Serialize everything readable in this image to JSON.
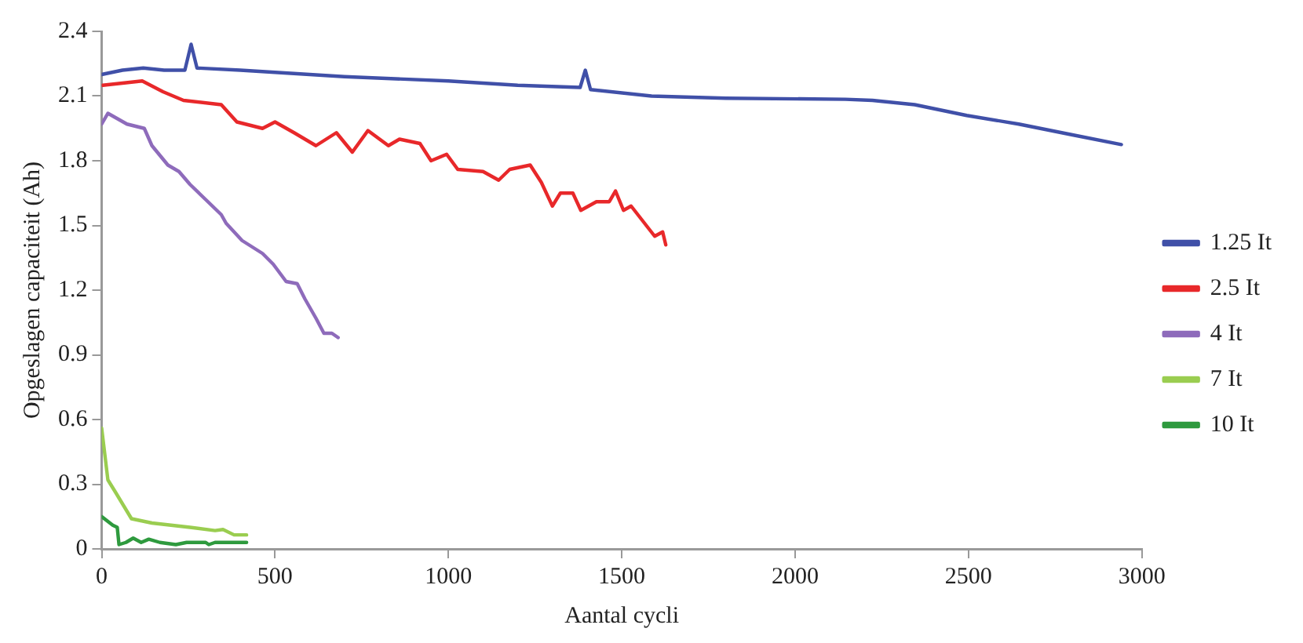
{
  "chart_data": {
    "type": "line",
    "xlabel": "Aantal cycli",
    "ylabel": "Opgeslagen capaciteit (Ah)",
    "xlim": [
      0,
      3000
    ],
    "xticks": [
      0,
      500,
      1000,
      1500,
      2000,
      2500,
      3000
    ],
    "ylim": [
      0,
      2.4
    ],
    "yticks": [
      0,
      0.3,
      0.6,
      0.9,
      1.2,
      1.5,
      1.8,
      2.1,
      2.4
    ],
    "grid": false,
    "legend": "right",
    "marker": "none",
    "line_style": "solid",
    "series": [
      {
        "name": "1.25 It",
        "color": "#4050a8",
        "x": [
          0,
          60,
          120,
          180,
          240,
          258,
          275,
          400,
          500,
          700,
          1000,
          1200,
          1380,
          1395,
          1410,
          1586,
          1800,
          2145,
          2223,
          2345,
          2495,
          2645,
          2800,
          2941
        ],
        "values": [
          2.2,
          2.22,
          2.23,
          2.22,
          2.22,
          2.34,
          2.23,
          2.22,
          2.21,
          2.19,
          2.17,
          2.15,
          2.14,
          2.22,
          2.13,
          2.1,
          2.09,
          2.085,
          2.08,
          2.06,
          2.01,
          1.97,
          1.92,
          1.875
        ]
      },
      {
        "name": "2.5 It",
        "color": "#e8282a",
        "x": [
          3,
          117,
          177,
          236,
          345,
          390,
          464,
          500,
          555,
          618,
          677,
          723,
          768,
          827,
          859,
          918,
          950,
          995,
          1027,
          1100,
          1145,
          1177,
          1236,
          1268,
          1300,
          1323,
          1359,
          1382,
          1427,
          1464,
          1482,
          1505,
          1527,
          1595,
          1618,
          1627
        ],
        "values": [
          2.15,
          2.17,
          2.12,
          2.08,
          2.06,
          1.98,
          1.95,
          1.98,
          1.93,
          1.87,
          1.93,
          1.84,
          1.94,
          1.87,
          1.9,
          1.88,
          1.8,
          1.83,
          1.76,
          1.75,
          1.71,
          1.76,
          1.78,
          1.7,
          1.59,
          1.65,
          1.65,
          1.57,
          1.61,
          1.61,
          1.66,
          1.57,
          1.59,
          1.45,
          1.47,
          1.41
        ]
      },
      {
        "name": "4 It",
        "color": "#8e6bbb",
        "x": [
          0,
          18,
          73,
          123,
          145,
          191,
          223,
          255,
          300,
          345,
          359,
          405,
          464,
          495,
          532,
          564,
          586,
          618,
          641,
          664,
          682
        ],
        "values": [
          1.97,
          2.02,
          1.97,
          1.95,
          1.87,
          1.78,
          1.75,
          1.69,
          1.62,
          1.55,
          1.51,
          1.43,
          1.37,
          1.32,
          1.24,
          1.23,
          1.16,
          1.07,
          1.0,
          1.0,
          0.98
        ]
      },
      {
        "name": "7 It",
        "color": "#9acd50",
        "x": [
          0,
          18,
          41,
          86,
          145,
          255,
          327,
          350,
          382,
          418
        ],
        "values": [
          0.56,
          0.32,
          0.26,
          0.14,
          0.12,
          0.1,
          0.085,
          0.09,
          0.065,
          0.065
        ]
      },
      {
        "name": "10 It",
        "color": "#2e9a3e",
        "x": [
          0,
          32,
          45,
          50,
          70,
          91,
          114,
          136,
          168,
          214,
          245,
          300,
          309,
          327,
          418
        ],
        "values": [
          0.15,
          0.11,
          0.1,
          0.02,
          0.03,
          0.05,
          0.03,
          0.045,
          0.03,
          0.02,
          0.03,
          0.03,
          0.02,
          0.03,
          0.03
        ]
      }
    ]
  }
}
